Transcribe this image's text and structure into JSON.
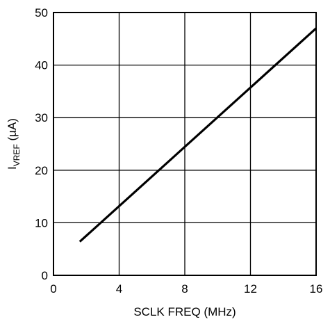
{
  "chart_data": {
    "type": "line",
    "title": "",
    "xlabel": "SCLK FREQ (MHz)",
    "ylabel_main": "I",
    "ylabel_sub": "VREF",
    "ylabel_unit": " (µA)",
    "xlim": [
      0,
      16
    ],
    "ylim": [
      0,
      50
    ],
    "xticks": [
      0,
      4,
      8,
      12,
      16
    ],
    "xtick_labels": [
      "0",
      "4",
      "8",
      "12",
      "16"
    ],
    "yticks": [
      0,
      10,
      20,
      30,
      40,
      50
    ],
    "ytick_labels": [
      "0",
      "10",
      "20",
      "30",
      "40",
      "50"
    ],
    "grid": true,
    "legend": "none",
    "colors": {
      "line": "#000000",
      "grid": "#000000",
      "background": "#ffffff"
    },
    "series": [
      {
        "x": [
          1.6,
          16
        ],
        "y": [
          6.4,
          47
        ]
      }
    ]
  }
}
